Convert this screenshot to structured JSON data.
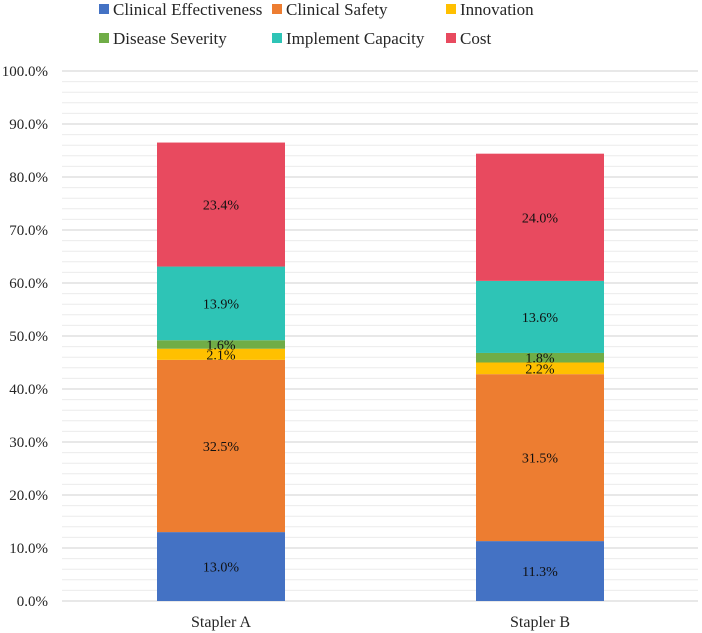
{
  "chart_data": {
    "type": "bar",
    "stacked": true,
    "categories": [
      "Stapler A",
      "Stapler B"
    ],
    "series": [
      {
        "name": "Clinical Effectiveness",
        "color": "#4472C4",
        "values": [
          13.0,
          11.3
        ],
        "labels": [
          "13.0%",
          "11.3%"
        ]
      },
      {
        "name": "Clinical Safety",
        "color": "#ED7D31",
        "values": [
          32.5,
          31.5
        ],
        "labels": [
          "32.5%",
          "31.5%"
        ]
      },
      {
        "name": "Innovation",
        "color": "#FFC000",
        "values": [
          2.1,
          2.2
        ],
        "labels": [
          "2.1%",
          "2.2%"
        ]
      },
      {
        "name": "Disease Severity",
        "color": "#70AD47",
        "values": [
          1.6,
          1.8
        ],
        "labels": [
          "1.6%",
          "1.8%"
        ]
      },
      {
        "name": "Implement Capacity",
        "color": "#2EC4B6",
        "values": [
          13.9,
          13.6
        ],
        "labels": [
          "13.9%",
          "13.6%"
        ]
      },
      {
        "name": "Cost",
        "color": "#E84A5F",
        "values": [
          23.4,
          24.0
        ],
        "labels": [
          "23.4%",
          "24.0%"
        ]
      }
    ],
    "y_ticks": [
      "0.0%",
      "10.0%",
      "20.0%",
      "30.0%",
      "40.0%",
      "50.0%",
      "60.0%",
      "70.0%",
      "80.0%",
      "90.0%",
      "100.0%"
    ],
    "ylim": [
      0,
      100
    ],
    "grid": "major and minor horizontal",
    "legend_position": "top"
  }
}
